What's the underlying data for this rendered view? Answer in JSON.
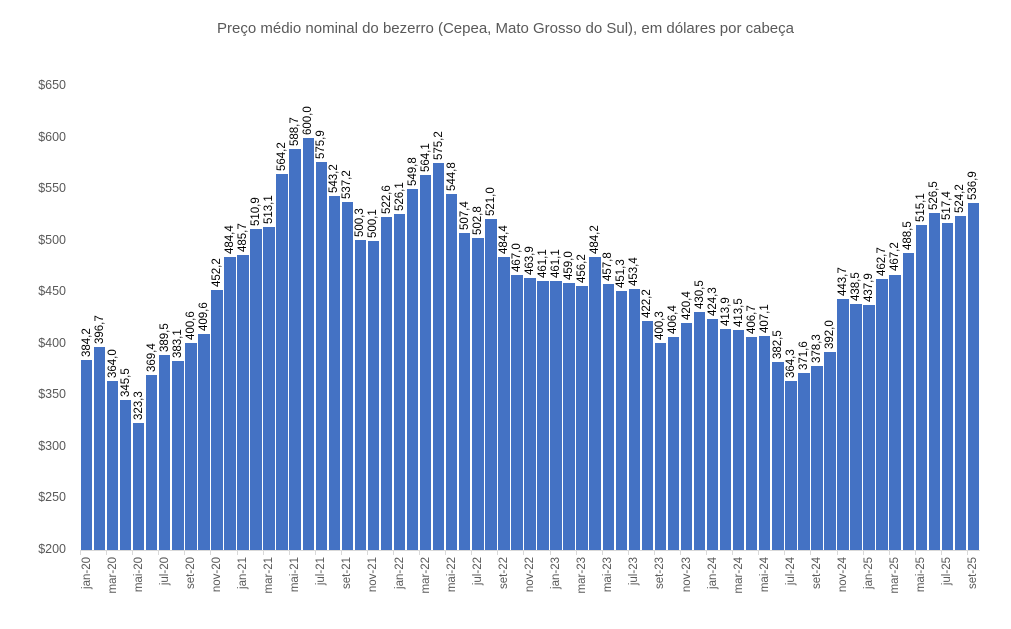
{
  "chart_data": {
    "type": "bar",
    "title": "Preço médio nominal do bezerro (Cepea, Mato Grosso do Sul), em dólares por cabeça",
    "xlabel": "",
    "ylabel": "",
    "ylim": [
      200,
      650
    ],
    "y_ticks": [
      "$200",
      "$250",
      "$300",
      "$350",
      "$400",
      "$450",
      "$500",
      "$550",
      "$600",
      "$650"
    ],
    "grid": false,
    "legend": null,
    "bar_color": "#4472c4",
    "categories": [
      "jan-20",
      "fev-20",
      "mar-20",
      "abr-20",
      "mai-20",
      "jun-20",
      "jul-20",
      "ago-20",
      "set-20",
      "out-20",
      "nov-20",
      "dez-20",
      "jan-21",
      "fev-21",
      "mar-21",
      "abr-21",
      "mai-21",
      "jun-21",
      "jul-21",
      "ago-21",
      "set-21",
      "out-21",
      "nov-21",
      "dez-21",
      "jan-22",
      "fev-22",
      "mar-22",
      "abr-22",
      "mai-22",
      "jun-22",
      "jul-22",
      "ago-22",
      "set-22",
      "out-22",
      "nov-22",
      "dez-22",
      "jan-23",
      "fev-23",
      "mar-23",
      "abr-23",
      "mai-23",
      "jun-23",
      "jul-23",
      "ago-23",
      "set-23",
      "out-23",
      "nov-23",
      "dez-23",
      "jan-24",
      "fev-24",
      "mar-24",
      "abr-24",
      "mai-24",
      "jun-24",
      "jul-24",
      "ago-24",
      "set-24",
      "out-24",
      "nov-24",
      "dez-24",
      "jan-25",
      "fev-25",
      "mar-25",
      "abr-25",
      "mai-25",
      "jun-25",
      "jul-25",
      "ago-25",
      "set-25"
    ],
    "x_tick_labels": [
      "jan-20",
      "mar-20",
      "mai-20",
      "jul-20",
      "set-20",
      "nov-20",
      "jan-21",
      "mar-21",
      "mai-21",
      "jul-21",
      "set-21",
      "nov-21",
      "jan-22",
      "mar-22",
      "mai-22",
      "jul-22",
      "set-22",
      "nov-22",
      "jan-23",
      "mar-23",
      "mai-23",
      "jul-23",
      "set-23",
      "nov-23",
      "jan-24",
      "mar-24",
      "mai-24",
      "jul-24",
      "set-24",
      "nov-24",
      "jan-25",
      "mar-25",
      "mai-25",
      "jul-25",
      "set-25"
    ],
    "values": [
      384.2,
      396.7,
      364.0,
      345.5,
      323.3,
      369.4,
      389.5,
      383.1,
      400.6,
      409.6,
      452.2,
      484.4,
      485.7,
      510.9,
      513.1,
      564.2,
      588.7,
      600.0,
      575.9,
      543.2,
      537.2,
      500.3,
      500.1,
      522.6,
      526.1,
      549.8,
      564.1,
      575.2,
      544.8,
      507.4,
      502.8,
      521.0,
      484.4,
      467.0,
      463.9,
      461.1,
      461.1,
      459.0,
      456.2,
      484.2,
      457.8,
      451.3,
      453.4,
      422.2,
      400.3,
      406.4,
      420.4,
      430.5,
      424.3,
      413.9,
      413.5,
      406.7,
      407.1,
      382.5,
      364.3,
      371.6,
      378.3,
      392.0,
      443.7,
      438.5,
      437.9,
      462.7,
      467.2,
      488.5,
      515.1,
      526.5,
      517.4,
      524.2,
      536.9
    ],
    "value_labels": [
      "384,2",
      "396,7",
      "364,0",
      "345,5",
      "323,3",
      "369,4",
      "389,5",
      "383,1",
      "400,6",
      "409,6",
      "452,2",
      "484,4",
      "485,7",
      "510,9",
      "513,1",
      "564,2",
      "588,7",
      "600,0",
      "575,9",
      "543,2",
      "537,2",
      "500,3",
      "500,1",
      "522,6",
      "526,1",
      "549,8",
      "564,1",
      "575,2",
      "544,8",
      "507,4",
      "502,8",
      "521,0",
      "484,4",
      "467,0",
      "463,9",
      "461,1",
      "461,1",
      "459,0",
      "456,2",
      "484,2",
      "457,8",
      "451,3",
      "453,4",
      "422,2",
      "400,3",
      "406,4",
      "420,4",
      "430,5",
      "424,3",
      "413,9",
      "413,5",
      "406,7",
      "407,1",
      "382,5",
      "364,3",
      "371,6",
      "378,3",
      "392,0",
      "443,7",
      "438,5",
      "437,9",
      "462,7",
      "467,2",
      "488,5",
      "515,1",
      "526,5",
      "517,4",
      "524,2",
      "536,9"
    ]
  }
}
